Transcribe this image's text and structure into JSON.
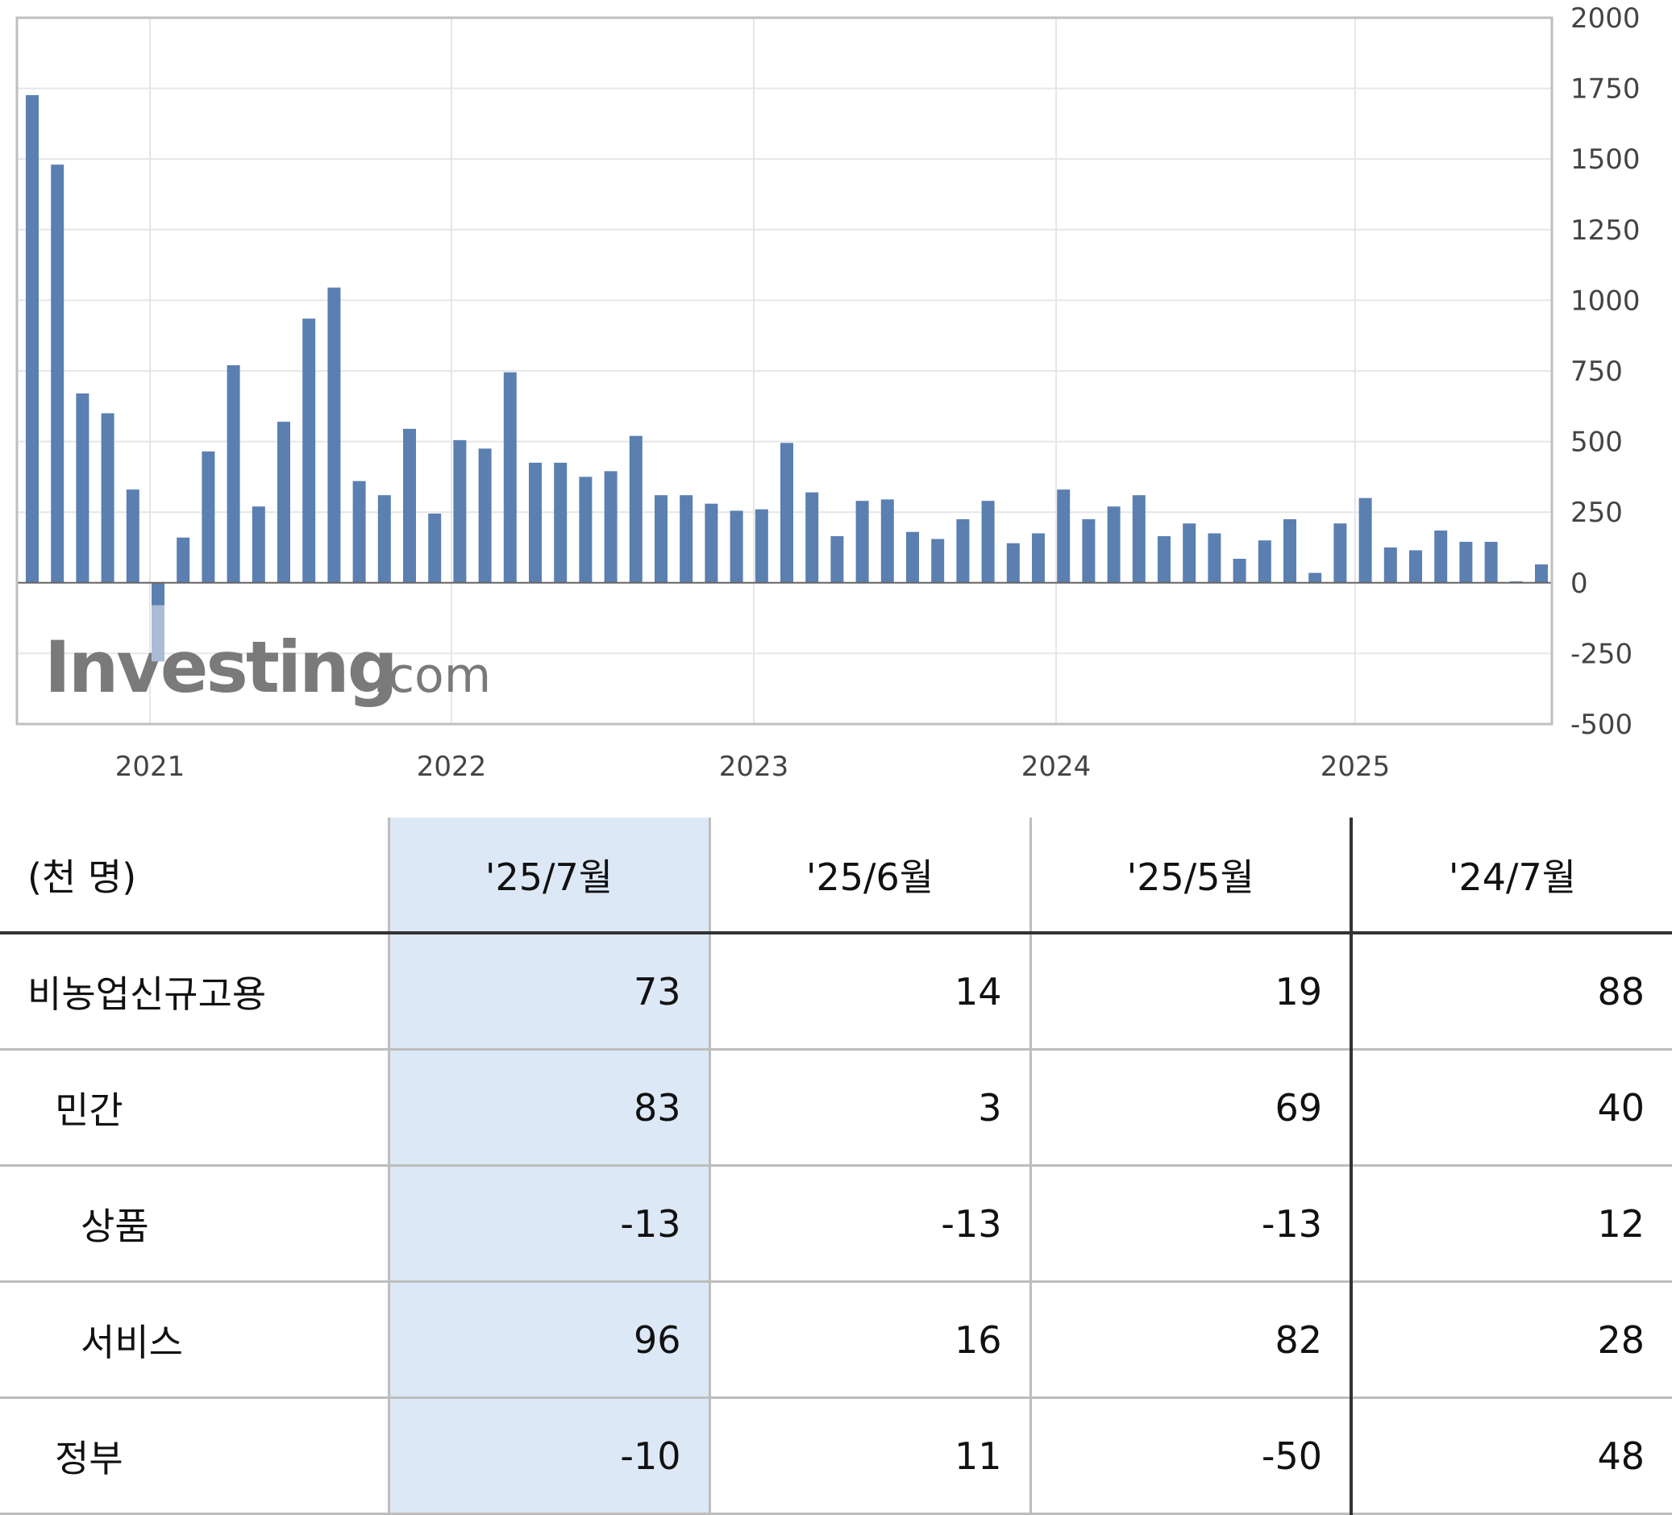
{
  "chart_data": {
    "type": "bar",
    "y_axis_side": "right",
    "ylim": [
      -500,
      2000
    ],
    "y_ticks": [
      2000,
      1750,
      1500,
      1250,
      1000,
      750,
      500,
      250,
      0,
      -250,
      -500
    ],
    "x_ticks": [
      "2021",
      "2022",
      "2023",
      "2024",
      "2025"
    ],
    "grid": true,
    "bar_color": "#5b7fb0",
    "pending_bar_color": "#aabbd6",
    "watermark": "Investing.com",
    "values": [
      1726,
      1480,
      670,
      600,
      330,
      -80,
      160,
      465,
      770,
      270,
      570,
      935,
      1045,
      360,
      310,
      545,
      245,
      505,
      475,
      745,
      425,
      425,
      375,
      395,
      520,
      310,
      310,
      280,
      255,
      260,
      495,
      320,
      165,
      290,
      295,
      180,
      155,
      225,
      290,
      140,
      175,
      330,
      225,
      270,
      310,
      165,
      210,
      175,
      85,
      150,
      225,
      35,
      210,
      300,
      125,
      115,
      185,
      145,
      145,
      5,
      65
    ]
  },
  "table": {
    "unit_label": "(천  명)",
    "columns": [
      "'25/7월",
      "'25/6월",
      "'25/5월",
      "'24/7월"
    ],
    "rows": [
      {
        "label": "비농업신규고용",
        "values": [
          "73",
          "14",
          "19",
          "88"
        ]
      },
      {
        "label": "민간",
        "values": [
          "83",
          "3",
          "69",
          "40"
        ]
      },
      {
        "label": "상품",
        "values": [
          "-13",
          "-13",
          "-13",
          "12"
        ]
      },
      {
        "label": "서비스",
        "values": [
          "96",
          "16",
          "82",
          "28"
        ]
      },
      {
        "label": "정부",
        "values": [
          "-10",
          "11",
          "-50",
          "48"
        ]
      }
    ]
  }
}
